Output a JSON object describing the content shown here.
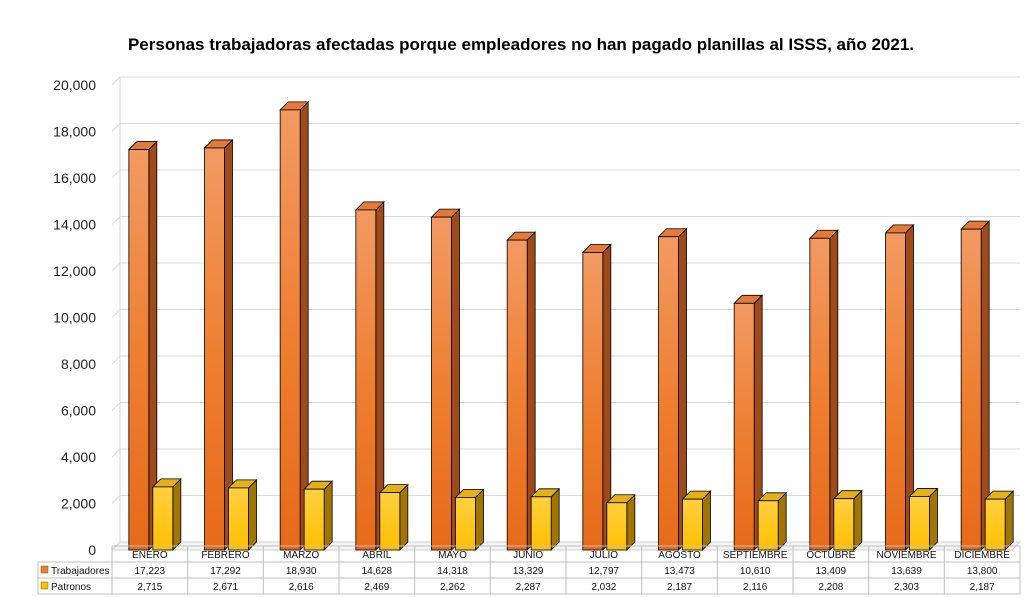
{
  "chart_data": {
    "type": "bar",
    "title": "Personas trabajadoras afectadas porque empleadores no han pagado planillas al ISSS, año 2021.",
    "categories": [
      "ENERO",
      "FEBRERO",
      "MARZO",
      "ABRIL",
      "MAYO",
      "JUNIO",
      "JULIO",
      "AGOSTO",
      "SEPTIEMBRE",
      "OCTUBRE",
      "NOVIEMBRE",
      "DICIEMBRE"
    ],
    "series": [
      {
        "name": "Trabajadores",
        "color": "#ED7D31",
        "values": [
          17223,
          17292,
          18930,
          14628,
          14318,
          13329,
          12797,
          13473,
          10610,
          13409,
          13639,
          13800
        ],
        "labels": [
          "17,223",
          "17,292",
          "18,930",
          "14,628",
          "14,318",
          "13,329",
          "12,797",
          "13,473",
          "10,610",
          "13,409",
          "13,639",
          "13,800"
        ]
      },
      {
        "name": "Patronos",
        "color": "#FFC000",
        "values": [
          2715,
          2671,
          2616,
          2469,
          2262,
          2287,
          2032,
          2187,
          2116,
          2208,
          2303,
          2187
        ],
        "labels": [
          "2,715",
          "2,671",
          "2,616",
          "2,469",
          "2,262",
          "2,287",
          "2,032",
          "2,187",
          "2,116",
          "2,208",
          "2,303",
          "2,187"
        ]
      }
    ],
    "ylim": [
      0,
      20000
    ],
    "yticks": [
      "0",
      "2,000",
      "4,000",
      "6,000",
      "8,000",
      "10,000",
      "12,000",
      "14,000",
      "16,000",
      "18,000",
      "20,000"
    ],
    "grid": true,
    "data_table": true
  }
}
